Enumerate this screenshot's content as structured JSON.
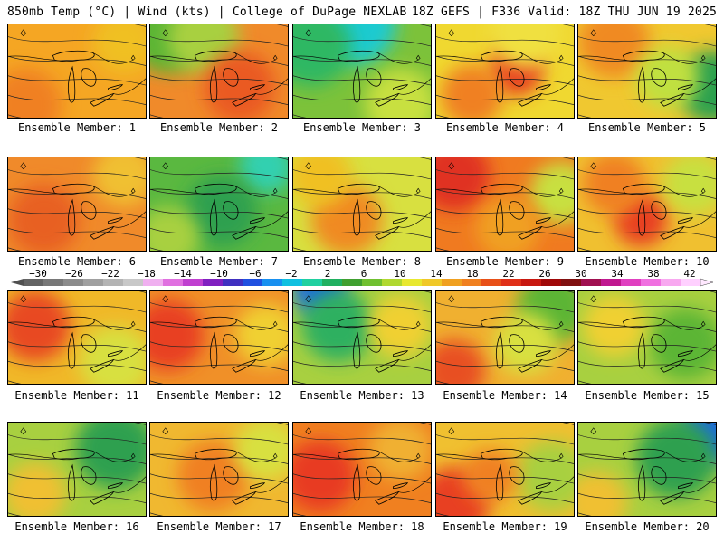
{
  "header": {
    "left": "850mb Temp (°C) | Wind (kts) | College of DuPage NEXLAB",
    "right": "18Z GEFS | F336 Valid: 18Z THU JUN 19 2025"
  },
  "members": [
    {
      "label": "Ensemble Member: 1",
      "base": "#f5a623",
      "blobs": [
        [
          "#f08020",
          20,
          90,
          40
        ],
        [
          "#f0c020",
          130,
          20,
          35
        ]
      ]
    },
    {
      "label": "Ensemble Member: 2",
      "base": "#f08a2a",
      "blobs": [
        [
          "#5bb535",
          20,
          10,
          45
        ],
        [
          "#a8d040",
          60,
          15,
          40
        ],
        [
          "#ea5a20",
          100,
          70,
          40
        ]
      ]
    },
    {
      "label": "Ensemble Member: 3",
      "base": "#7cc23a",
      "blobs": [
        [
          "#1ecad0",
          70,
          0,
          45
        ],
        [
          "#2eb864",
          20,
          25,
          45
        ],
        [
          "#c8e040",
          120,
          90,
          40
        ]
      ]
    },
    {
      "label": "Ensemble Member: 4",
      "base": "#f0d830",
      "blobs": [
        [
          "#e83a20",
          90,
          50,
          30
        ],
        [
          "#f08020",
          40,
          80,
          35
        ],
        [
          "#f0e040",
          100,
          10,
          40
        ]
      ]
    },
    {
      "label": "Ensemble Member: 5",
      "base": "#f0c830",
      "blobs": [
        [
          "#f08a20",
          40,
          20,
          40
        ],
        [
          "#2aa050",
          150,
          70,
          40
        ],
        [
          "#c0e040",
          100,
          60,
          35
        ]
      ]
    },
    {
      "label": "Ensemble Member: 6",
      "base": "#f08a2a",
      "blobs": [
        [
          "#e86020",
          40,
          70,
          40
        ],
        [
          "#f0c030",
          130,
          20,
          35
        ]
      ]
    },
    {
      "label": "Ensemble Member: 7",
      "base": "#5ab840",
      "blobs": [
        [
          "#30d0b0",
          130,
          10,
          30
        ],
        [
          "#2ea050",
          80,
          60,
          40
        ],
        [
          "#a8d040",
          20,
          90,
          35
        ]
      ]
    },
    {
      "label": "Ensemble Member: 8",
      "base": "#d8e040",
      "blobs": [
        [
          "#f08a20",
          60,
          70,
          40
        ],
        [
          "#f0c020",
          30,
          20,
          35
        ]
      ]
    },
    {
      "label": "Ensemble Member: 9",
      "base": "#f07a20",
      "blobs": [
        [
          "#e03020",
          20,
          20,
          40
        ],
        [
          "#c8e040",
          140,
          40,
          35
        ],
        [
          "#f0a020",
          80,
          80,
          35
        ]
      ]
    },
    {
      "label": "Ensemble Member: 10",
      "base": "#f0c030",
      "blobs": [
        [
          "#e84020",
          70,
          70,
          30
        ],
        [
          "#c8e040",
          130,
          30,
          35
        ],
        [
          "#f08020",
          40,
          30,
          35
        ]
      ]
    },
    {
      "label": "Ensemble Member: 11",
      "base": "#f0b828",
      "blobs": [
        [
          "#e84a20",
          30,
          40,
          40
        ],
        [
          "#d8e040",
          120,
          80,
          40
        ]
      ]
    },
    {
      "label": "Ensemble Member: 12",
      "base": "#f09028",
      "blobs": [
        [
          "#e84020",
          20,
          50,
          40
        ],
        [
          "#f0d030",
          130,
          50,
          35
        ]
      ]
    },
    {
      "label": "Ensemble Member: 13",
      "base": "#a8d040",
      "blobs": [
        [
          "#1a6ae0",
          30,
          0,
          30
        ],
        [
          "#2eb060",
          50,
          40,
          40
        ],
        [
          "#f0d030",
          120,
          40,
          35
        ]
      ]
    },
    {
      "label": "Ensemble Member: 14",
      "base": "#f0b030",
      "blobs": [
        [
          "#5bb535",
          130,
          20,
          40
        ],
        [
          "#e85020",
          20,
          90,
          35
        ],
        [
          "#d8e040",
          100,
          60,
          35
        ]
      ]
    },
    {
      "label": "Ensemble Member: 15",
      "base": "#a8d040",
      "blobs": [
        [
          "#5bb535",
          120,
          60,
          40
        ],
        [
          "#f0d030",
          40,
          40,
          35
        ]
      ]
    },
    {
      "label": "Ensemble Member: 16",
      "base": "#a8d040",
      "blobs": [
        [
          "#2ea050",
          120,
          30,
          45
        ],
        [
          "#f0c030",
          30,
          80,
          35
        ]
      ]
    },
    {
      "label": "Ensemble Member: 17",
      "base": "#f0b830",
      "blobs": [
        [
          "#f08020",
          70,
          60,
          40
        ],
        [
          "#d8e040",
          130,
          30,
          35
        ]
      ]
    },
    {
      "label": "Ensemble Member: 18",
      "base": "#f08020",
      "blobs": [
        [
          "#e83a20",
          30,
          60,
          40
        ],
        [
          "#f0b030",
          120,
          30,
          35
        ]
      ]
    },
    {
      "label": "Ensemble Member: 19",
      "base": "#f0c030",
      "blobs": [
        [
          "#e84020",
          20,
          90,
          40
        ],
        [
          "#a8d040",
          130,
          60,
          40
        ],
        [
          "#f08020",
          60,
          60,
          30
        ]
      ]
    },
    {
      "label": "Ensemble Member: 20",
      "base": "#a8d040",
      "blobs": [
        [
          "#1a6ae0",
          150,
          10,
          35
        ],
        [
          "#2ea050",
          110,
          40,
          45
        ],
        [
          "#f0c030",
          20,
          90,
          35
        ]
      ]
    }
  ],
  "legend": {
    "ticks": [
      "−30",
      "−26",
      "−22",
      "−18",
      "−14",
      "−10",
      "−6",
      "−2",
      "2",
      "6",
      "10",
      "14",
      "18",
      "22",
      "26",
      "30",
      "34",
      "38",
      "42"
    ],
    "colors": [
      "#646464",
      "#787878",
      "#8c8c8c",
      "#a0a0a0",
      "#b4b4b4",
      "#c8c8c8",
      "#f0b0f0",
      "#e070e0",
      "#c040d0",
      "#8020c0",
      "#4030c0",
      "#2050e0",
      "#1890f0",
      "#10c0e0",
      "#20d0a0",
      "#20b060",
      "#40a030",
      "#70c030",
      "#b0d830",
      "#e8e830",
      "#f0c828",
      "#f0a020",
      "#f08020",
      "#e85018",
      "#e03018",
      "#c81810",
      "#a00808",
      "#801010",
      "#a01050",
      "#c01890",
      "#e040c0",
      "#f070e0",
      "#f8a8f0",
      "#ffd0ff"
    ]
  }
}
